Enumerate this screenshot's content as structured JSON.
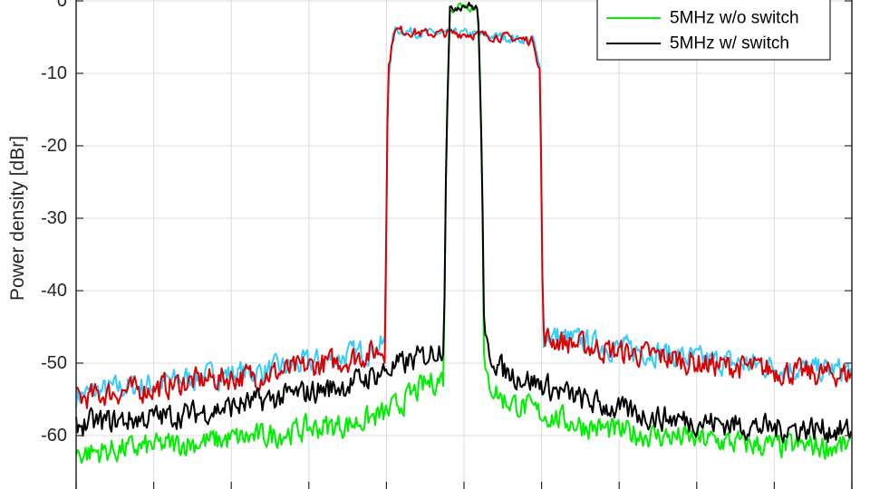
{
  "chart_data": {
    "type": "line",
    "title": "",
    "xlabel": "",
    "ylabel": "Power density [dBr]",
    "ylim": [
      -67,
      0.5
    ],
    "xlim": [
      -50,
      50
    ],
    "yticks": [
      0,
      -10,
      -20,
      -30,
      -40,
      -50,
      -60
    ],
    "ytick_labels": [
      "0",
      "-10",
      "-20",
      "-30",
      "-40",
      "-50",
      "-60"
    ],
    "xgrid": [
      -50,
      -40,
      -30,
      -20,
      -10,
      0,
      10,
      20,
      30,
      40,
      50
    ],
    "grid": true,
    "legend_position": "top-right",
    "series": [
      {
        "legend_label": "",
        "color": "#33ccff",
        "x": [
          -50,
          -45,
          -40,
          -35,
          -30,
          -25,
          -20,
          -15,
          -10.2,
          -9.8,
          -9,
          -5,
          0,
          5,
          9,
          9.8,
          10.2,
          15,
          20,
          25,
          30,
          35,
          40,
          45,
          50
        ],
        "y": [
          -54.5,
          -53.5,
          -53,
          -52,
          -51.5,
          -51,
          -50,
          -49,
          -47.5,
          -10,
          -4,
          -4.5,
          -4.5,
          -5,
          -5.5,
          -10,
          -46,
          -47,
          -48,
          -48.5,
          -49.5,
          -50,
          -50.5,
          -51,
          -51
        ]
      },
      {
        "legend_label": "",
        "color": "#dd0000",
        "x": [
          -50,
          -45,
          -40,
          -35,
          -30,
          -25,
          -20,
          -15,
          -10.2,
          -9.8,
          -9,
          -5,
          0,
          5,
          9,
          9.8,
          10.2,
          15,
          20,
          25,
          30,
          35,
          40,
          45,
          50
        ],
        "y": [
          -55,
          -54,
          -53.5,
          -52.5,
          -52,
          -51.5,
          -50.5,
          -49.5,
          -48,
          -10,
          -4,
          -4.5,
          -4.5,
          -5,
          -5.5,
          -10,
          -46.5,
          -47.5,
          -48.5,
          -49,
          -50,
          -50.5,
          -51,
          -51.5,
          -51.5
        ]
      },
      {
        "name": "5MHz w/o switch",
        "color": "#00ee00",
        "x": [
          -50,
          -45,
          -40,
          -35,
          -30,
          -25,
          -20,
          -15,
          -10,
          -5,
          -2.6,
          -2.3,
          -1.8,
          0,
          1.8,
          2.3,
          2.6,
          5,
          10,
          15,
          20,
          25,
          30,
          35,
          40,
          45,
          50
        ],
        "y": [
          -62.5,
          -62,
          -61.5,
          -61,
          -60.5,
          -60,
          -59,
          -58.5,
          -57,
          -53,
          -52,
          -20,
          -1,
          -0.5,
          -1,
          -20,
          -52,
          -55,
          -57,
          -58.5,
          -59.5,
          -60,
          -60.5,
          -61,
          -61.5,
          -61.5,
          -61.5
        ]
      },
      {
        "name": "5MHz w/ switch",
        "color": "#000000",
        "x": [
          -50,
          -45,
          -40,
          -35,
          -30,
          -25,
          -20,
          -15,
          -10,
          -5,
          -2.6,
          -2.3,
          -1.8,
          0,
          1.8,
          2.3,
          2.6,
          5,
          10,
          15,
          20,
          25,
          30,
          35,
          40,
          45,
          50
        ],
        "y": [
          -58.5,
          -58,
          -57.5,
          -57,
          -56,
          -55,
          -54,
          -53,
          -51,
          -49,
          -47.5,
          -20,
          -1,
          -0.5,
          -1,
          -20,
          -47.5,
          -51,
          -53,
          -55,
          -56.5,
          -57.5,
          -58,
          -58.5,
          -59,
          -59,
          -59.5
        ]
      }
    ]
  }
}
